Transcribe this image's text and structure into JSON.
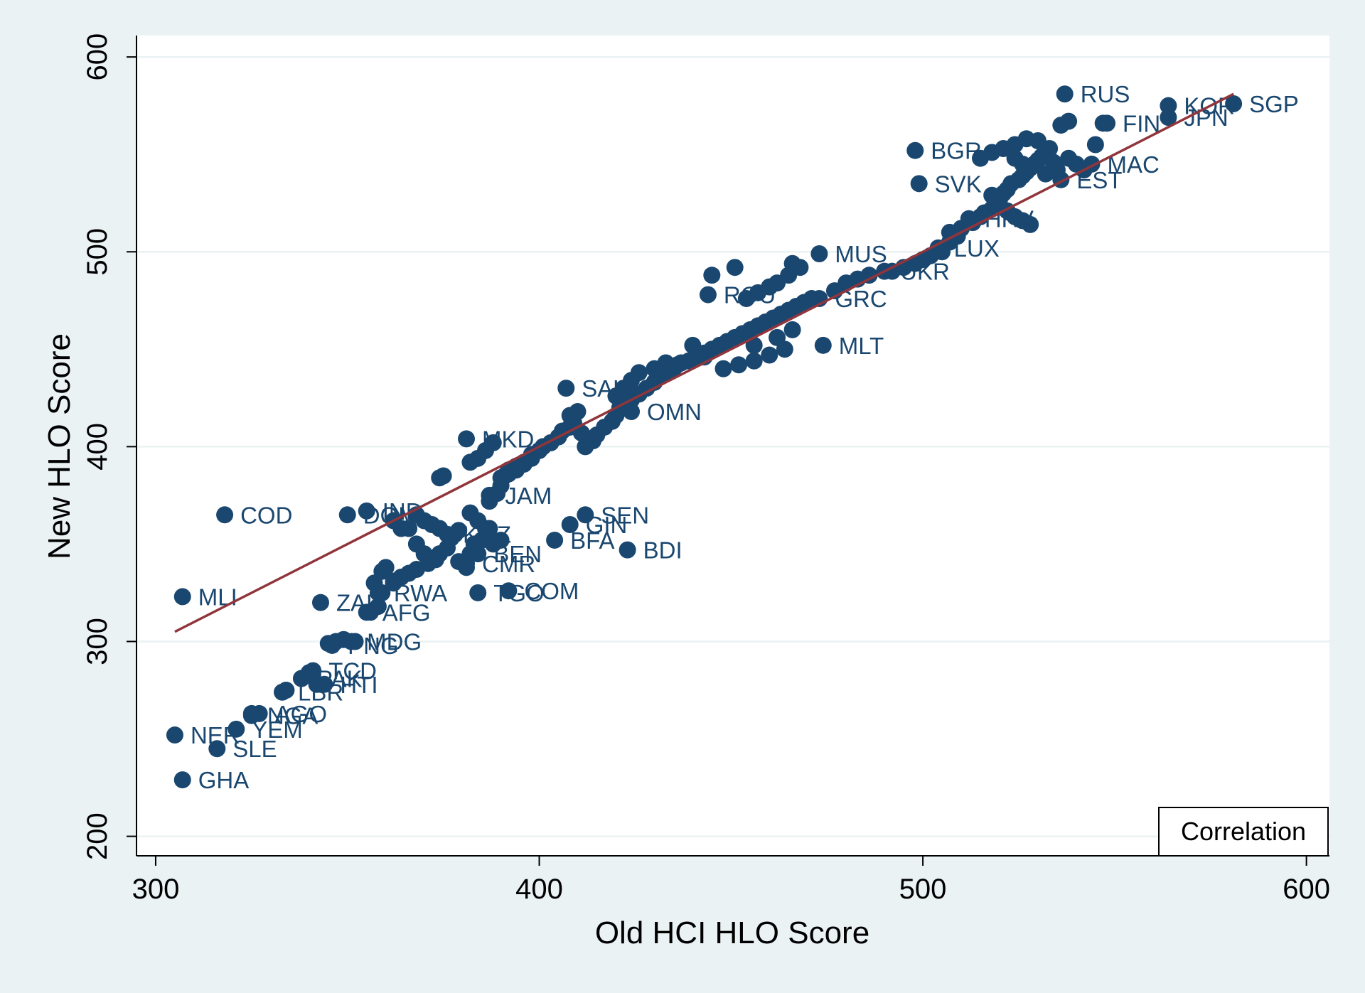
{
  "colors": {
    "background": "#eaf2f3",
    "plot_background": "#ffffff",
    "marker": "#1a476f",
    "fit_line": "#90353b",
    "grid": "#eaf2f3"
  },
  "chart_data": {
    "type": "scatter",
    "xlabel": "Old HCI HLO Score",
    "ylabel": "New HLO Score",
    "xlim": [
      295,
      606
    ],
    "ylim": [
      190,
      611
    ],
    "xticks": [
      "300",
      "400",
      "500",
      "600"
    ],
    "yticks": [
      "200",
      "300",
      "400",
      "500",
      "600"
    ],
    "grid": "horizontal",
    "legend": {
      "label": "Correlation",
      "placement": "bottom-right"
    },
    "fit_line": {
      "x": [
        305,
        581
      ],
      "y": [
        305,
        581
      ]
    },
    "points": [
      {
        "label": "COD",
        "x": 318,
        "y": 365
      },
      {
        "label": "MLI",
        "x": 307,
        "y": 323
      },
      {
        "label": "NER",
        "x": 305,
        "y": 252
      },
      {
        "label": "GHA",
        "x": 307,
        "y": 229
      },
      {
        "label": "SLE",
        "x": 316,
        "y": 245
      },
      {
        "label": "YEM",
        "x": 321,
        "y": 255
      },
      {
        "label": "AGO",
        "x": 327,
        "y": 263
      },
      {
        "label": "NGA",
        "x": 325,
        "y": 262
      },
      {
        "label": "LBR",
        "x": 333,
        "y": 274
      },
      {
        "label": "PAK",
        "x": 338,
        "y": 281
      },
      {
        "label": "TCD",
        "x": 341,
        "y": 285
      },
      {
        "label": "HTI",
        "x": 344,
        "y": 278
      },
      {
        "label": "ZAF",
        "x": 343,
        "y": 320
      },
      {
        "label": "PNG",
        "x": 346,
        "y": 298
      },
      {
        "label": "MDG",
        "x": 351,
        "y": 300
      },
      {
        "label": "DOM",
        "x": 350,
        "y": 365
      },
      {
        "label": "IND",
        "x": 355,
        "y": 367
      },
      {
        "label": "AFG",
        "x": 355,
        "y": 315
      },
      {
        "label": "RWA",
        "x": 358,
        "y": 325
      },
      {
        "label": "SEN",
        "x": 412,
        "y": 365
      },
      {
        "label": "GIN",
        "x": 408,
        "y": 360
      },
      {
        "label": "BFA",
        "x": 404,
        "y": 352
      },
      {
        "label": "BDI",
        "x": 423,
        "y": 347
      },
      {
        "label": "COM",
        "x": 392,
        "y": 326
      },
      {
        "label": "TGO",
        "x": 384,
        "y": 325
      },
      {
        "label": "CMR",
        "x": 381,
        "y": 340
      },
      {
        "label": "BEN",
        "x": 384,
        "y": 345
      },
      {
        "label": "KGZ",
        "x": 376,
        "y": 355
      },
      {
        "label": "JAM",
        "x": 387,
        "y": 375
      },
      {
        "label": "MKD",
        "x": 381,
        "y": 404
      },
      {
        "label": "SAU",
        "x": 407,
        "y": 430
      },
      {
        "label": "OMN",
        "x": 424,
        "y": 418
      },
      {
        "label": "MLT",
        "x": 474,
        "y": 452
      },
      {
        "label": "MUS",
        "x": 473,
        "y": 499
      },
      {
        "label": "UKR",
        "x": 490,
        "y": 490
      },
      {
        "label": "ROU",
        "x": 444,
        "y": 478
      },
      {
        "label": "BGR",
        "x": 498,
        "y": 552
      },
      {
        "label": "SVK",
        "x": 499,
        "y": 535
      },
      {
        "label": "RUS",
        "x": 537,
        "y": 581
      },
      {
        "label": "SGP",
        "x": 581,
        "y": 576
      },
      {
        "label": "KOR",
        "x": 564,
        "y": 575
      },
      {
        "label": "JPN",
        "x": 564,
        "y": 569
      },
      {
        "label": "FIN",
        "x": 548,
        "y": 566
      },
      {
        "label": "MAC",
        "x": 544,
        "y": 545
      },
      {
        "label": "EST",
        "x": 536,
        "y": 537
      },
      {
        "label": "HRV",
        "x": 512,
        "y": 517
      },
      {
        "label": "LUX",
        "x": 504,
        "y": 502
      },
      {
        "label": "GRC",
        "x": 473,
        "y": 476
      }
    ],
    "cluster_points": [
      [
        325,
        263
      ],
      [
        334,
        275
      ],
      [
        338,
        281
      ],
      [
        340,
        284
      ],
      [
        342,
        278
      ],
      [
        345,
        299
      ],
      [
        347,
        300
      ],
      [
        349,
        301
      ],
      [
        352,
        300
      ],
      [
        356,
        315
      ],
      [
        358,
        318
      ],
      [
        359,
        325
      ],
      [
        357,
        330
      ],
      [
        359,
        336
      ],
      [
        360,
        338
      ],
      [
        362,
        330
      ],
      [
        362,
        331
      ],
      [
        364,
        333
      ],
      [
        366,
        335
      ],
      [
        368,
        337
      ],
      [
        368,
        350
      ],
      [
        370,
        345
      ],
      [
        371,
        340
      ],
      [
        373,
        342
      ],
      [
        374,
        345
      ],
      [
        376,
        348
      ],
      [
        377,
        353
      ],
      [
        379,
        357
      ],
      [
        379,
        341
      ],
      [
        381,
        338
      ],
      [
        382,
        345
      ],
      [
        383,
        350
      ],
      [
        385,
        352
      ],
      [
        387,
        358
      ],
      [
        387,
        372
      ],
      [
        389,
        376
      ],
      [
        390,
        380
      ],
      [
        391,
        385
      ],
      [
        392,
        388
      ],
      [
        394,
        390
      ],
      [
        396,
        392
      ],
      [
        398,
        396
      ],
      [
        400,
        398
      ],
      [
        401,
        400
      ],
      [
        403,
        402
      ],
      [
        405,
        405
      ],
      [
        406,
        408
      ],
      [
        408,
        410
      ],
      [
        409,
        412
      ],
      [
        411,
        407
      ],
      [
        412,
        400
      ],
      [
        414,
        403
      ],
      [
        415,
        406
      ],
      [
        417,
        410
      ],
      [
        419,
        413
      ],
      [
        420,
        416
      ],
      [
        421,
        420
      ],
      [
        423,
        422
      ],
      [
        424,
        424
      ],
      [
        426,
        427
      ],
      [
        428,
        430
      ],
      [
        430,
        433
      ],
      [
        431,
        436
      ],
      [
        433,
        438
      ],
      [
        435,
        440
      ],
      [
        437,
        443
      ],
      [
        439,
        444
      ],
      [
        441,
        446
      ],
      [
        443,
        448
      ],
      [
        445,
        450
      ],
      [
        447,
        452
      ],
      [
        449,
        454
      ],
      [
        451,
        456
      ],
      [
        453,
        458
      ],
      [
        455,
        460
      ],
      [
        457,
        462
      ],
      [
        459,
        464
      ],
      [
        461,
        466
      ],
      [
        463,
        468
      ],
      [
        465,
        470
      ],
      [
        467,
        472
      ],
      [
        469,
        474
      ],
      [
        471,
        476
      ],
      [
        477,
        480
      ],
      [
        480,
        484
      ],
      [
        483,
        486
      ],
      [
        486,
        488
      ],
      [
        492,
        490
      ],
      [
        495,
        492
      ],
      [
        498,
        494
      ],
      [
        500,
        496
      ],
      [
        502,
        498
      ],
      [
        505,
        500
      ],
      [
        507,
        505
      ],
      [
        509,
        508
      ],
      [
        510,
        512
      ],
      [
        513,
        515
      ],
      [
        515,
        518
      ],
      [
        516,
        520
      ],
      [
        518,
        522
      ],
      [
        519,
        524
      ],
      [
        520,
        527
      ],
      [
        521,
        530
      ],
      [
        522,
        532
      ],
      [
        523,
        535
      ],
      [
        525,
        537
      ],
      [
        526,
        539
      ],
      [
        527,
        541
      ],
      [
        528,
        543
      ],
      [
        529,
        545
      ],
      [
        530,
        547
      ],
      [
        531,
        549
      ],
      [
        532,
        551
      ],
      [
        533,
        553
      ],
      [
        534,
        546
      ],
      [
        535,
        542
      ],
      [
        538,
        548
      ],
      [
        540,
        545
      ],
      [
        542,
        542
      ],
      [
        545,
        555
      ],
      [
        515,
        548
      ],
      [
        518,
        551
      ],
      [
        521,
        553
      ],
      [
        524,
        555
      ],
      [
        527,
        558
      ],
      [
        530,
        557
      ],
      [
        536,
        565
      ],
      [
        538,
        567
      ],
      [
        547,
        566
      ],
      [
        524,
        548
      ],
      [
        526,
        545
      ],
      [
        532,
        540
      ],
      [
        518,
        529
      ],
      [
        520,
        524
      ],
      [
        522,
        521
      ],
      [
        524,
        518
      ],
      [
        526,
        516
      ],
      [
        528,
        514
      ],
      [
        510,
        512
      ],
      [
        507,
        510
      ],
      [
        454,
        476
      ],
      [
        457,
        479
      ],
      [
        460,
        482
      ],
      [
        462,
        484
      ],
      [
        465,
        488
      ],
      [
        468,
        492
      ],
      [
        445,
        488
      ],
      [
        451,
        492
      ],
      [
        466,
        494
      ],
      [
        382,
        392
      ],
      [
        384,
        394
      ],
      [
        386,
        398
      ],
      [
        388,
        402
      ],
      [
        390,
        384
      ],
      [
        392,
        386
      ],
      [
        394,
        388
      ],
      [
        396,
        391
      ],
      [
        398,
        394
      ],
      [
        374,
        384
      ],
      [
        375,
        385
      ],
      [
        362,
        362
      ],
      [
        364,
        358
      ],
      [
        366,
        358
      ],
      [
        368,
        365
      ],
      [
        370,
        362
      ],
      [
        372,
        360
      ],
      [
        374,
        358
      ],
      [
        378,
        355
      ],
      [
        382,
        366
      ],
      [
        384,
        362
      ],
      [
        386,
        358
      ],
      [
        388,
        350
      ],
      [
        390,
        352
      ],
      [
        408,
        416
      ],
      [
        410,
        418
      ],
      [
        420,
        426
      ],
      [
        422,
        430
      ],
      [
        424,
        434
      ],
      [
        426,
        438
      ],
      [
        430,
        440
      ],
      [
        433,
        443
      ],
      [
        436,
        442
      ],
      [
        440,
        452
      ],
      [
        443,
        446
      ],
      [
        448,
        440
      ],
      [
        452,
        442
      ],
      [
        456,
        444
      ],
      [
        460,
        447
      ],
      [
        464,
        450
      ],
      [
        456,
        452
      ],
      [
        462,
        456
      ],
      [
        466,
        460
      ]
    ]
  }
}
